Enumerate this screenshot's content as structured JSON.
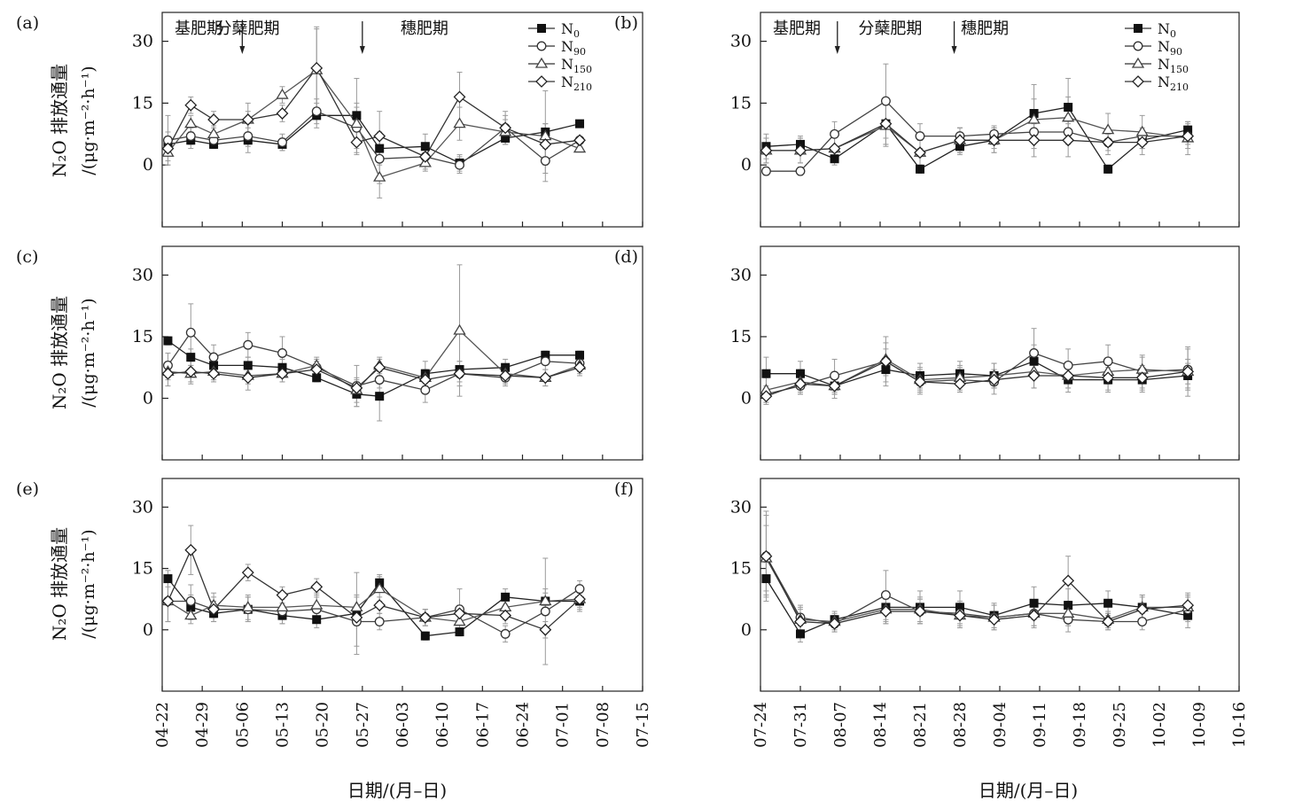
{
  "chart_data": {
    "type": "line",
    "series_names": [
      "N0",
      "N90",
      "N150",
      "N210"
    ],
    "legend": [
      {
        "base": "N",
        "sub": "0",
        "marker": "square-filled"
      },
      {
        "base": "N",
        "sub": "90",
        "marker": "circle-open"
      },
      {
        "base": "N",
        "sub": "150",
        "marker": "triangle-open"
      },
      {
        "base": "N",
        "sub": "210",
        "marker": "diamond-open"
      }
    ],
    "ylabel_line1": "N₂O 排放通量",
    "ylabel_line2": "/(μg·m⁻²·h⁻¹)",
    "xlabel": "日期/(月–日)",
    "yticks": [
      0,
      15,
      30
    ],
    "ylim": [
      -15,
      37
    ],
    "colors": {
      "N0": "#111111",
      "N90": "#333333",
      "N150": "#444444",
      "N210": "#222222",
      "error": "#999999"
    },
    "columns": [
      {
        "id": "left",
        "tick_labels": [
          "04-22",
          "04-29",
          "05-06",
          "05-13",
          "05-20",
          "05-27",
          "06-03",
          "06-10",
          "06-17",
          "06-24",
          "07-01",
          "07-08",
          "07-15"
        ]
      },
      {
        "id": "right",
        "tick_labels": [
          "07-24",
          "07-31",
          "08-07",
          "08-14",
          "08-21",
          "08-28",
          "09-04",
          "09-11",
          "09-18",
          "09-25",
          "10-02",
          "10-09",
          "10-16"
        ]
      }
    ],
    "panels": [
      {
        "label": "(a)",
        "column": "left",
        "legend": true,
        "stages": [
          {
            "text": "基肥期",
            "start": 0
          },
          {
            "text": "分蘖肥期",
            "start": 7.2
          },
          {
            "text": "穗肥期",
            "start": 39.5
          }
        ],
        "arrows": [
          14,
          35
        ],
        "x": [
          1,
          5,
          9,
          15,
          21,
          27,
          34,
          38,
          46,
          52,
          60,
          67,
          73
        ],
        "series": [
          {
            "name": "N0",
            "values": [
              5,
              6,
              5,
              6,
              5,
              12,
              12,
              4,
              4.5,
              0.5,
              6.5,
              8,
              10
            ],
            "errors": [
              2,
              2,
              1,
              1.5,
              1.5,
              3,
              9,
              4,
              3,
              2,
              1.5,
              2,
              0
            ]
          },
          {
            "name": "N90",
            "values": [
              6,
              7,
              6,
              7,
              5.5,
              13,
              9,
              1.5,
              2,
              0,
              9,
              1,
              6
            ],
            "errors": [
              6,
              2,
              2,
              4,
              2,
              3,
              5,
              6,
              3,
              2,
              4,
              3,
              0
            ]
          },
          {
            "name": "N150",
            "values": [
              3,
              10,
              7.5,
              11,
              17,
              23,
              10,
              -3,
              0.5,
              10,
              8,
              7,
              4
            ],
            "errors": [
              2,
              2,
              2,
              4,
              2,
              10,
              5,
              5,
              2,
              4,
              3,
              11,
              0
            ]
          },
          {
            "name": "N210",
            "values": [
              4,
              14.5,
              11,
              11,
              12.5,
              23.5,
              5.5,
              7,
              2,
              16.5,
              9,
              5,
              6
            ],
            "errors": [
              4,
              2,
              2,
              2,
              2,
              10,
              3,
              6,
              2,
              6,
              3,
              5,
              0
            ]
          }
        ]
      },
      {
        "label": "(b)",
        "column": "right",
        "legend": true,
        "stages": [
          {
            "text": "基肥期",
            "start": 0
          },
          {
            "text": "分蘖肥期",
            "start": 15
          },
          {
            "text": "穗肥期",
            "start": 33
          }
        ],
        "arrows": [
          13.5,
          34
        ],
        "x": [
          1,
          7,
          13,
          22,
          28,
          35,
          41,
          48,
          54,
          61,
          67,
          75
        ],
        "series": [
          {
            "name": "N0",
            "values": [
              4.5,
              5,
              1.5,
              10,
              -1,
              4.5,
              6,
              12.5,
              14,
              -1,
              6,
              8.5
            ],
            "errors": [
              3,
              2,
              1.5,
              5,
              1,
              2,
              2,
              7,
              7,
              1,
              2,
              2
            ]
          },
          {
            "name": "N90",
            "values": [
              -1.5,
              -1.5,
              7.5,
              15.5,
              7,
              7,
              7.5,
              8,
              8,
              5.5,
              7,
              7
            ],
            "errors": [
              1,
              1,
              3,
              9,
              3,
              2,
              2,
              4,
              3,
              2,
              2,
              2
            ]
          },
          {
            "name": "N150",
            "values": [
              3.5,
              3.5,
              4,
              9.5,
              3,
              6,
              6,
              11,
              11.5,
              8.5,
              8,
              6.5
            ],
            "errors": [
              3,
              3,
              3,
              5,
              3,
              3,
              3,
              5,
              5,
              4,
              4,
              4
            ]
          },
          {
            "name": "N210",
            "values": [
              3.5,
              3.5,
              4,
              10,
              3,
              6,
              6,
              6,
              6,
              5.5,
              5.5,
              7
            ],
            "errors": [
              3,
              3,
              3,
              5,
              3,
              3,
              3,
              4,
              4,
              3,
              3,
              3
            ]
          }
        ]
      },
      {
        "label": "(c)",
        "column": "left",
        "x": [
          1,
          5,
          9,
          15,
          21,
          27,
          34,
          38,
          46,
          52,
          60,
          67,
          73
        ],
        "series": [
          {
            "name": "N0",
            "values": [
              14,
              10,
              8,
              8,
              7.5,
              5,
              1,
              0.5,
              6,
              7,
              7.5,
              10.5,
              10.5
            ],
            "errors": [
              1,
              2,
              2,
              2,
              2,
              1,
              3,
              6,
              3,
              2,
              2,
              1,
              1
            ]
          },
          {
            "name": "N90",
            "values": [
              8,
              16,
              10,
              13,
              11,
              7.5,
              3,
              4.5,
              2,
              6,
              5,
              9,
              8.5
            ],
            "errors": [
              3,
              7,
              3,
              3,
              4,
              2,
              5,
              2,
              3,
              2,
              2,
              2,
              2
            ]
          },
          {
            "name": "N150",
            "values": [
              6.5,
              6,
              6.5,
              5.5,
              6,
              8,
              2,
              8,
              5,
              16.5,
              6,
              5,
              8
            ],
            "errors": [
              2,
              2,
              2,
              2,
              2,
              2,
              3,
              2,
              2,
              16,
              2,
              2,
              2
            ]
          },
          {
            "name": "N210",
            "values": [
              6,
              6.5,
              6,
              5,
              6,
              7,
              2.5,
              7.5,
              4.5,
              6,
              5.5,
              5,
              7.5
            ],
            "errors": [
              3,
              3,
              2,
              3,
              2,
              2,
              2,
              2,
              2,
              3,
              2,
              2,
              2
            ]
          }
        ]
      },
      {
        "label": "(d)",
        "column": "right",
        "x": [
          1,
          7,
          13,
          22,
          28,
          35,
          41,
          48,
          54,
          61,
          67,
          75
        ],
        "series": [
          {
            "name": "N0",
            "values": [
              6,
              6,
              3,
              7,
              5.5,
              6,
              5.5,
              9,
              4.5,
              4.5,
              4.5,
              5.5
            ],
            "errors": [
              4,
              3,
              2,
              3,
              3,
              3,
              3,
              4,
              3,
              3,
              3,
              3
            ]
          },
          {
            "name": "N90",
            "values": [
              1,
              3,
              5.5,
              9,
              4,
              4.5,
              4,
              11,
              8,
              9,
              6.5,
              7
            ],
            "errors": [
              2,
              2,
              4,
              6,
              3,
              3,
              3,
              6,
              4,
              4,
              4,
              5
            ]
          },
          {
            "name": "N150",
            "values": [
              2,
              4,
              3,
              9.5,
              4.5,
              5,
              5.5,
              6.5,
              5.5,
              6.5,
              7,
              6.5
            ],
            "errors": [
              3,
              3,
              3,
              4,
              3,
              3,
              3,
              4,
              3,
              3,
              3,
              6
            ]
          },
          {
            "name": "N210",
            "values": [
              0.5,
              3.5,
              3,
              9,
              4,
              3.5,
              4.5,
              5.5,
              5.5,
              5,
              5,
              6.5
            ],
            "errors": [
              2,
              2,
              2,
              3,
              2,
              2,
              2,
              3,
              3,
              3,
              3,
              3
            ]
          }
        ]
      },
      {
        "label": "(e)",
        "column": "left",
        "x": [
          1,
          5,
          9,
          15,
          21,
          27,
          34,
          38,
          46,
          52,
          60,
          67,
          73
        ],
        "series": [
          {
            "name": "N0",
            "values": [
              12.5,
              5.5,
              4,
              5,
              3.5,
              2.5,
              4,
              11.5,
              -1.5,
              -0.5,
              8,
              7,
              7
            ],
            "errors": [
              2,
              3,
              2,
              3,
              2,
              2,
              10,
              2,
              1,
              1,
              2,
              2,
              2
            ]
          },
          {
            "name": "N90",
            "values": [
              7,
              7,
              5,
              5,
              4.5,
              5,
              2,
              2,
              3,
              5,
              -1,
              4.5,
              10
            ],
            "errors": [
              5,
              4,
              2,
              3,
              3,
              3,
              6,
              2,
              2,
              5,
              2,
              13,
              2
            ]
          },
          {
            "name": "N150",
            "values": [
              7,
              3.5,
              6,
              5.5,
              5.5,
              6,
              5.5,
              10,
              3,
              2,
              5.5,
              7,
              7.5
            ],
            "errors": [
              5,
              2,
              3,
              3,
              3,
              3,
              3,
              3,
              2,
              2,
              3,
              3,
              3
            ]
          },
          {
            "name": "N210",
            "values": [
              7,
              19.5,
              5,
              14,
              8.5,
              10.5,
              3,
              6,
              3,
              4,
              3.5,
              0,
              7.5
            ],
            "errors": [
              5,
              6,
              3,
              2,
              2,
              2,
              2,
              2,
              2,
              2,
              2,
              2,
              2
            ]
          }
        ]
      },
      {
        "label": "(f)",
        "column": "right",
        "x": [
          1,
          7,
          13,
          22,
          28,
          35,
          41,
          48,
          54,
          61,
          67,
          75
        ],
        "series": [
          {
            "name": "N0",
            "values": [
              12.5,
              -1,
              2.5,
              5.5,
              5.5,
              5.5,
              3.5,
              6.5,
              6,
              6.5,
              5.5,
              3.5
            ],
            "errors": [
              4,
              2,
              2,
              4,
              4,
              4,
              3,
              4,
              4,
              3,
              3,
              3
            ]
          },
          {
            "name": "N90",
            "values": [
              18,
              3,
              1.5,
              8.5,
              4.5,
              4,
              3,
              4,
              2.5,
              2,
              2,
              5
            ],
            "errors": [
              10,
              3,
              2,
              6,
              3,
              3,
              3,
              3,
              3,
              2,
              2,
              3
            ]
          },
          {
            "name": "N150",
            "values": [
              17.5,
              2.5,
              2,
              5,
              5,
              3.5,
              3,
              4,
              4,
              2.5,
              5.5,
              5.5
            ],
            "errors": [
              8,
              3,
              2,
              3,
              3,
              3,
              3,
              3,
              3,
              2,
              3,
              3
            ]
          },
          {
            "name": "N210",
            "values": [
              18,
              2,
              1.5,
              4.5,
              4.5,
              3.5,
              2.5,
              3.5,
              12,
              2,
              5,
              6
            ],
            "errors": [
              11,
              3,
              2,
              3,
              3,
              3,
              2,
              3,
              6,
              2,
              3,
              3
            ]
          }
        ]
      }
    ]
  }
}
